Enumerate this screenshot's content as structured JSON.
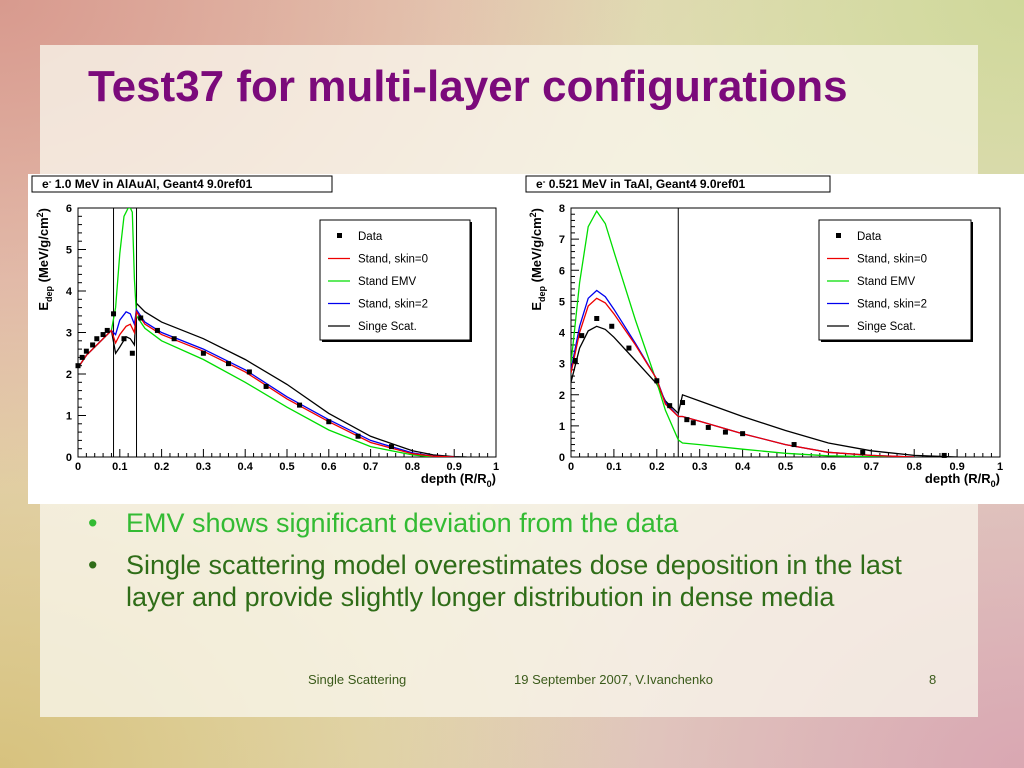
{
  "slide": {
    "title": "Test37 for multi-layer configurations",
    "bullets": [
      "EMV shows significant deviation from the data",
      "Single scattering model overestimates dose deposition in the last layer and provide slightly longer distribution in dense media"
    ],
    "bullet_symbol": "•",
    "footer": {
      "left": "Single Scattering",
      "center": "19 September 2007, V.Ivanchenko",
      "page": "8"
    }
  },
  "colors": {
    "title": "#7b0a7b",
    "bullet_highlight": "#33bb33",
    "bullet_text": "#2f6d18",
    "series": {
      "Data": "#000000",
      "Stand, skin=0": "#ee0000",
      "Stand EMV": "#00dd00",
      "Stand, skin=2": "#0000ee",
      "Singe Scat.": "#000000"
    }
  },
  "chart_data": [
    {
      "type": "line",
      "title": "e- 1.0 MeV in AlAuAl, Geant4 9.0ref01",
      "title_parts": {
        "particle": "e",
        "sup": "-",
        "rest": " 1.0 MeV in AlAuAl, Geant4 9.0ref01"
      },
      "xlabel": "depth (R/R0)",
      "xlabel_parts": {
        "main": "depth (R/R",
        "sub": "0",
        "end": ")"
      },
      "ylabel": "Edep (MeV/g/cm2)",
      "ylabel_parts": {
        "e": "E",
        "sub": "dep",
        "mid": " (MeV/g/cm",
        "sup": "2",
        "end": ")"
      },
      "xlim": [
        0,
        1
      ],
      "ylim": [
        0,
        6
      ],
      "xticks": [
        0,
        0.1,
        0.2,
        0.3,
        0.4,
        0.5,
        0.6,
        0.7,
        0.8,
        0.9,
        1
      ],
      "xtick_labels": [
        "0",
        "0.1",
        "0.2",
        "0.3",
        "0.4",
        "0.5",
        "0.6",
        "0.7",
        "0.8",
        "0.9",
        "1"
      ],
      "yticks": [
        0,
        1,
        2,
        3,
        4,
        5,
        6
      ],
      "ytick_labels": [
        "0",
        "1",
        "2",
        "3",
        "4",
        "5",
        "6"
      ],
      "layer_boundaries": [
        0.085,
        0.14
      ],
      "legend": [
        "Data",
        "Stand, skin=0",
        "Stand EMV",
        "Stand, skin=2",
        "Singe Scat."
      ],
      "legend_position": "top-right",
      "series": [
        {
          "name": "Data",
          "kind": "points",
          "x": [
            0.0,
            0.01,
            0.02,
            0.035,
            0.045,
            0.06,
            0.07,
            0.085,
            0.11,
            0.13,
            0.15,
            0.19,
            0.23,
            0.3,
            0.36,
            0.41,
            0.45,
            0.53,
            0.6,
            0.67,
            0.75
          ],
          "y": [
            2.2,
            2.4,
            2.55,
            2.7,
            2.85,
            2.95,
            3.05,
            3.45,
            2.85,
            2.5,
            3.35,
            3.05,
            2.85,
            2.5,
            2.25,
            2.05,
            1.7,
            1.25,
            0.85,
            0.5,
            0.25
          ]
        },
        {
          "name": "Stand, skin=0",
          "kind": "line",
          "x": [
            0,
            0.02,
            0.05,
            0.08,
            0.09,
            0.1,
            0.115,
            0.125,
            0.135,
            0.14,
            0.16,
            0.2,
            0.3,
            0.4,
            0.5,
            0.6,
            0.7,
            0.8,
            0.85,
            0.9
          ],
          "y": [
            2.15,
            2.45,
            2.75,
            3.05,
            2.75,
            2.95,
            3.15,
            3.2,
            3.0,
            3.5,
            3.2,
            2.95,
            2.55,
            2.05,
            1.4,
            0.85,
            0.35,
            0.08,
            0.02,
            0
          ]
        },
        {
          "name": "Stand EMV",
          "kind": "line",
          "x": [
            0,
            0.02,
            0.05,
            0.08,
            0.09,
            0.1,
            0.11,
            0.12,
            0.125,
            0.13,
            0.135,
            0.14,
            0.16,
            0.2,
            0.3,
            0.4,
            0.5,
            0.6,
            0.7,
            0.8,
            0.85
          ],
          "y": [
            2.15,
            2.45,
            2.75,
            3.05,
            3.6,
            4.9,
            5.8,
            6.0,
            6.0,
            5.9,
            4.3,
            3.4,
            3.1,
            2.8,
            2.35,
            1.8,
            1.2,
            0.65,
            0.25,
            0.05,
            0
          ]
        },
        {
          "name": "Stand, skin=2",
          "kind": "line",
          "x": [
            0,
            0.02,
            0.05,
            0.08,
            0.09,
            0.1,
            0.115,
            0.125,
            0.135,
            0.14,
            0.16,
            0.2,
            0.3,
            0.4,
            0.5,
            0.6,
            0.7,
            0.8,
            0.85,
            0.9
          ],
          "y": [
            2.15,
            2.45,
            2.75,
            3.05,
            2.95,
            3.3,
            3.5,
            3.45,
            3.2,
            3.55,
            3.25,
            3.0,
            2.6,
            2.1,
            1.45,
            0.9,
            0.4,
            0.1,
            0.02,
            0
          ]
        },
        {
          "name": "Singe Scat.",
          "kind": "line",
          "x": [
            0,
            0.02,
            0.05,
            0.08,
            0.09,
            0.1,
            0.115,
            0.125,
            0.135,
            0.14,
            0.16,
            0.2,
            0.3,
            0.4,
            0.5,
            0.6,
            0.7,
            0.8,
            0.85,
            0.9,
            0.93
          ],
          "y": [
            2.15,
            2.45,
            2.75,
            3.05,
            2.5,
            2.65,
            2.9,
            2.85,
            2.7,
            3.7,
            3.5,
            3.25,
            2.85,
            2.35,
            1.75,
            1.05,
            0.5,
            0.15,
            0.05,
            0.01,
            0
          ]
        }
      ]
    },
    {
      "type": "line",
      "title": "e- 0.521 MeV in TaAl, Geant4 9.0ref01",
      "title_parts": {
        "particle": "e",
        "sup": "-",
        "rest": " 0.521 MeV in TaAl, Geant4 9.0ref01"
      },
      "xlabel": "depth (R/R0)",
      "xlabel_parts": {
        "main": "depth (R/R",
        "sub": "0",
        "end": ")"
      },
      "ylabel": "Edep (MeV/g/cm2)",
      "ylabel_parts": {
        "e": "E",
        "sub": "dep",
        "mid": " (MeV/g/cm",
        "sup": "2",
        "end": ")"
      },
      "xlim": [
        0,
        1
      ],
      "ylim": [
        0,
        8
      ],
      "xticks": [
        0,
        0.1,
        0.2,
        0.3,
        0.4,
        0.5,
        0.6,
        0.7,
        0.8,
        0.9,
        1
      ],
      "xtick_labels": [
        "0",
        "0.1",
        "0.2",
        "0.3",
        "0.4",
        "0.5",
        "0.6",
        "0.7",
        "0.8",
        "0.9",
        "1"
      ],
      "yticks": [
        0,
        1,
        2,
        3,
        4,
        5,
        6,
        7,
        8
      ],
      "ytick_labels": [
        "0",
        "1",
        "2",
        "3",
        "4",
        "5",
        "6",
        "7",
        "8"
      ],
      "layer_boundaries": [
        0.25
      ],
      "legend": [
        "Data",
        "Stand, skin=0",
        "Stand EMV",
        "Stand, skin=2",
        "Singe Scat."
      ],
      "legend_position": "top-right",
      "series": [
        {
          "name": "Data",
          "kind": "points",
          "x": [
            0.01,
            0.025,
            0.06,
            0.095,
            0.135,
            0.2,
            0.23,
            0.26,
            0.27,
            0.285,
            0.32,
            0.36,
            0.4,
            0.52,
            0.68,
            0.87
          ],
          "y": [
            3.1,
            3.9,
            4.45,
            4.2,
            3.5,
            2.45,
            1.65,
            1.75,
            1.2,
            1.1,
            0.95,
            0.8,
            0.75,
            0.4,
            0.15,
            0.05
          ]
        },
        {
          "name": "Stand, skin=0",
          "kind": "line",
          "x": [
            0,
            0.02,
            0.04,
            0.06,
            0.08,
            0.1,
            0.15,
            0.2,
            0.22,
            0.25,
            0.26,
            0.3,
            0.4,
            0.5,
            0.6,
            0.7,
            0.8
          ],
          "y": [
            2.7,
            4.0,
            4.85,
            5.1,
            4.95,
            4.6,
            3.6,
            2.5,
            1.7,
            1.3,
            1.3,
            1.15,
            0.75,
            0.4,
            0.15,
            0.05,
            0
          ]
        },
        {
          "name": "Stand EMV",
          "kind": "line",
          "x": [
            0,
            0.02,
            0.04,
            0.06,
            0.08,
            0.1,
            0.15,
            0.2,
            0.22,
            0.25,
            0.26,
            0.3,
            0.4,
            0.5,
            0.6,
            0.7,
            0.8
          ],
          "y": [
            3.0,
            5.6,
            7.4,
            7.9,
            7.5,
            6.6,
            4.4,
            2.4,
            1.5,
            0.55,
            0.45,
            0.4,
            0.25,
            0.12,
            0.04,
            0.01,
            0
          ]
        },
        {
          "name": "Stand, skin=2",
          "kind": "line",
          "x": [
            0,
            0.02,
            0.04,
            0.06,
            0.08,
            0.1,
            0.15,
            0.2,
            0.22,
            0.25,
            0.26,
            0.3,
            0.4,
            0.5,
            0.6,
            0.7,
            0.8
          ],
          "y": [
            2.8,
            4.2,
            5.1,
            5.35,
            5.15,
            4.75,
            3.65,
            2.5,
            1.75,
            1.3,
            1.3,
            1.15,
            0.75,
            0.4,
            0.15,
            0.05,
            0
          ]
        },
        {
          "name": "Singe Scat.",
          "kind": "line",
          "x": [
            0,
            0.02,
            0.04,
            0.06,
            0.08,
            0.1,
            0.15,
            0.2,
            0.22,
            0.25,
            0.26,
            0.3,
            0.4,
            0.5,
            0.6,
            0.7,
            0.8,
            0.9
          ],
          "y": [
            2.4,
            3.5,
            4.05,
            4.2,
            4.1,
            3.85,
            3.1,
            2.35,
            1.8,
            1.4,
            2.0,
            1.8,
            1.3,
            0.85,
            0.45,
            0.2,
            0.05,
            0
          ]
        }
      ]
    }
  ]
}
